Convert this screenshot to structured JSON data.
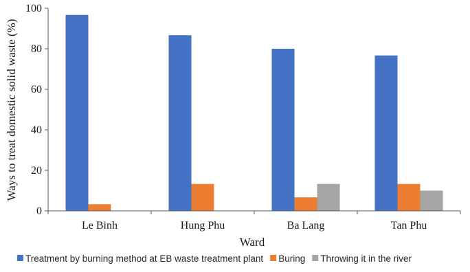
{
  "chart_data": {
    "type": "bar",
    "title": "",
    "xlabel": "Ward",
    "ylabel": "Ways  to treat domestic solid waste (%)",
    "categories": [
      "Le Binh",
      "Hung Phu",
      "Ba Lang",
      "Tan Phu"
    ],
    "series": [
      {
        "name": "Treatment by burning method at EB waste treatment plant",
        "color": "#4472C4",
        "values": [
          96.7,
          86.7,
          80.0,
          76.7
        ]
      },
      {
        "name": "Buring",
        "color": "#ED7D31",
        "values": [
          3.3,
          13.3,
          6.7,
          13.3
        ]
      },
      {
        "name": "Throwing it in the river",
        "color": "#A5A5A5",
        "values": [
          0,
          0,
          13.3,
          10.0
        ]
      }
    ],
    "ylim": [
      0,
      100
    ],
    "yticks": [
      0,
      20,
      40,
      60,
      80,
      100
    ],
    "grid": false,
    "legend_position": "bottom"
  }
}
